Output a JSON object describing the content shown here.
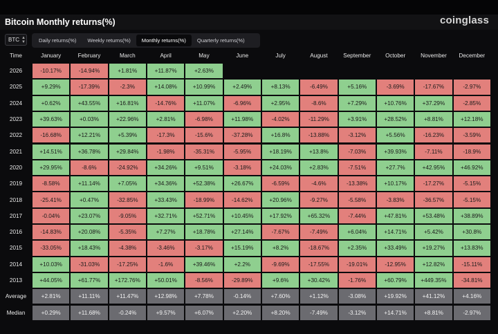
{
  "title": "Bitcoin Monthly returns(%)",
  "brand": "coinglass",
  "asset_selector": {
    "value": "BTC"
  },
  "tabs": [
    {
      "label": "Daily returns(%)",
      "active": false
    },
    {
      "label": "Weekly returns(%)",
      "active": false
    },
    {
      "label": "Monthly returns(%)",
      "active": true
    },
    {
      "label": "Quarterly returns(%)",
      "active": false
    }
  ],
  "colors": {
    "positive": "#8fcf8f",
    "negative": "#e2807c",
    "summary": "#6b6b70",
    "background": "#0b0b0d"
  },
  "chart_data": {
    "type": "table",
    "title": "Bitcoin Monthly returns(%)",
    "corner_label": "Time",
    "columns": [
      "January",
      "February",
      "March",
      "April",
      "May",
      "June",
      "July",
      "August",
      "September",
      "October",
      "November",
      "December"
    ],
    "rows": [
      {
        "label": "2026",
        "values": [
          "-10.17%",
          "-14.94%",
          "+1.81%",
          "+11.87%",
          "+2.63%",
          "",
          "",
          "",
          "",
          "",
          "",
          ""
        ]
      },
      {
        "label": "2025",
        "values": [
          "+9.29%",
          "-17.39%",
          "-2.3%",
          "+14.08%",
          "+10.99%",
          "+2.49%",
          "+8.13%",
          "-6.49%",
          "+5.16%",
          "-3.69%",
          "-17.67%",
          "-2.97%"
        ]
      },
      {
        "label": "2024",
        "values": [
          "+0.62%",
          "+43.55%",
          "+16.81%",
          "-14.76%",
          "+11.07%",
          "-6.96%",
          "+2.95%",
          "-8.6%",
          "+7.29%",
          "+10.76%",
          "+37.29%",
          "-2.85%"
        ]
      },
      {
        "label": "2023",
        "values": [
          "+39.63%",
          "+0.03%",
          "+22.96%",
          "+2.81%",
          "-6.98%",
          "+11.98%",
          "-4.02%",
          "-11.29%",
          "+3.91%",
          "+28.52%",
          "+8.81%",
          "+12.18%"
        ]
      },
      {
        "label": "2022",
        "values": [
          "-16.68%",
          "+12.21%",
          "+5.39%",
          "-17.3%",
          "-15.6%",
          "-37.28%",
          "+16.8%",
          "-13.88%",
          "-3.12%",
          "+5.56%",
          "-16.23%",
          "-3.59%"
        ]
      },
      {
        "label": "2021",
        "values": [
          "+14.51%",
          "+36.78%",
          "+29.84%",
          "-1.98%",
          "-35.31%",
          "-5.95%",
          "+18.19%",
          "+13.8%",
          "-7.03%",
          "+39.93%",
          "-7.11%",
          "-18.9%"
        ]
      },
      {
        "label": "2020",
        "values": [
          "+29.95%",
          "-8.6%",
          "-24.92%",
          "+34.26%",
          "+9.51%",
          "-3.18%",
          "+24.03%",
          "+2.83%",
          "-7.51%",
          "+27.7%",
          "+42.95%",
          "+46.92%"
        ]
      },
      {
        "label": "2019",
        "values": [
          "-8.58%",
          "+11.14%",
          "+7.05%",
          "+34.36%",
          "+52.38%",
          "+26.67%",
          "-6.59%",
          "-4.6%",
          "-13.38%",
          "+10.17%",
          "-17.27%",
          "-5.15%"
        ]
      },
      {
        "label": "2018",
        "values": [
          "-25.41%",
          "+0.47%",
          "-32.85%",
          "+33.43%",
          "-18.99%",
          "-14.62%",
          "+20.96%",
          "-9.27%",
          "-5.58%",
          "-3.83%",
          "-36.57%",
          "-5.15%"
        ]
      },
      {
        "label": "2017",
        "values": [
          "-0.04%",
          "+23.07%",
          "-9.05%",
          "+32.71%",
          "+52.71%",
          "+10.45%",
          "+17.92%",
          "+65.32%",
          "-7.44%",
          "+47.81%",
          "+53.48%",
          "+38.89%"
        ]
      },
      {
        "label": "2016",
        "values": [
          "-14.83%",
          "+20.08%",
          "-5.35%",
          "+7.27%",
          "+18.78%",
          "+27.14%",
          "-7.67%",
          "-7.49%",
          "+6.04%",
          "+14.71%",
          "+5.42%",
          "+30.8%"
        ]
      },
      {
        "label": "2015",
        "values": [
          "-33.05%",
          "+18.43%",
          "-4.38%",
          "-3.46%",
          "-3.17%",
          "+15.19%",
          "+8.2%",
          "-18.67%",
          "+2.35%",
          "+33.49%",
          "+19.27%",
          "+13.83%"
        ]
      },
      {
        "label": "2014",
        "values": [
          "+10.03%",
          "-31.03%",
          "-17.25%",
          "-1.6%",
          "+39.46%",
          "+2.2%",
          "-9.69%",
          "-17.55%",
          "-19.01%",
          "-12.95%",
          "+12.82%",
          "-15.11%"
        ]
      },
      {
        "label": "2013",
        "values": [
          "+44.05%",
          "+61.77%",
          "+172.76%",
          "+50.01%",
          "-8.56%",
          "-29.89%",
          "+9.6%",
          "+30.42%",
          "-1.76%",
          "+60.79%",
          "+449.35%",
          "-34.81%"
        ]
      }
    ],
    "summary_rows": [
      {
        "label": "Average",
        "values": [
          "+2.81%",
          "+11.11%",
          "+11.47%",
          "+12.98%",
          "+7.78%",
          "-0.14%",
          "+7.60%",
          "+1.12%",
          "-3.08%",
          "+19.92%",
          "+41.12%",
          "+4.16%"
        ]
      },
      {
        "label": "Median",
        "values": [
          "+0.29%",
          "+11.68%",
          "-0.24%",
          "+9.57%",
          "+6.07%",
          "+2.20%",
          "+8.20%",
          "-7.49%",
          "-3.12%",
          "+14.71%",
          "+8.81%",
          "-2.97%"
        ]
      }
    ]
  }
}
